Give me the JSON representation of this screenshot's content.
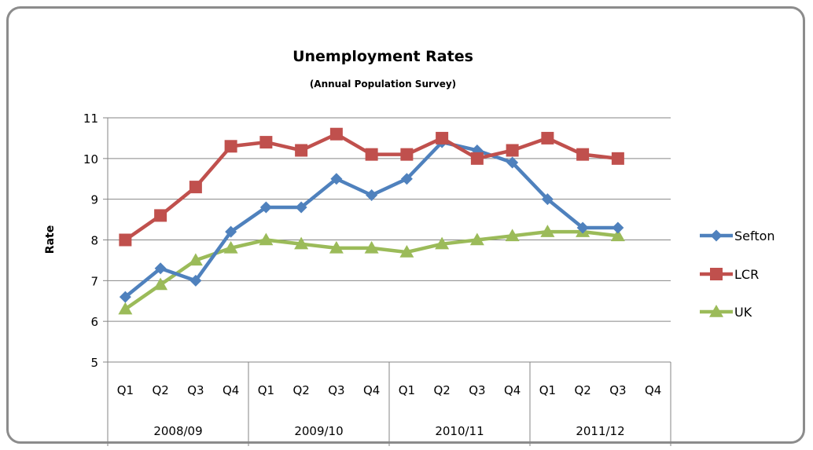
{
  "chart_data": {
    "type": "line",
    "title": "Unemployment Rates",
    "subtitle": "(Annual Population Survey)",
    "ylabel": "Rate",
    "xlabel": "",
    "ylim": [
      5,
      11
    ],
    "yticks": [
      5,
      6,
      7,
      8,
      9,
      10,
      11
    ],
    "grid": "horizontal",
    "legend_position": "right",
    "categories": [
      "Q1",
      "Q2",
      "Q3",
      "Q4",
      "Q1",
      "Q2",
      "Q3",
      "Q4",
      "Q1",
      "Q2",
      "Q3",
      "Q4",
      "Q1",
      "Q2",
      "Q3",
      "Q4"
    ],
    "groups": [
      {
        "label": "2008/09",
        "count": 4
      },
      {
        "label": "2009/10",
        "count": 4
      },
      {
        "label": "2010/11",
        "count": 4
      },
      {
        "label": "2011/12",
        "count": 4
      }
    ],
    "series": [
      {
        "name": "Sefton",
        "color": "#4f81bd",
        "marker": "diamond",
        "values": [
          6.6,
          7.3,
          7.0,
          8.2,
          8.8,
          8.8,
          9.5,
          9.1,
          9.5,
          10.4,
          10.2,
          9.9,
          9.0,
          8.3,
          8.3,
          null
        ]
      },
      {
        "name": "LCR",
        "color": "#c0504d",
        "marker": "square",
        "values": [
          8.0,
          8.6,
          9.3,
          10.3,
          10.4,
          10.2,
          10.6,
          10.1,
          10.1,
          10.5,
          10.0,
          10.2,
          10.5,
          10.1,
          10.0,
          null
        ]
      },
      {
        "name": "UK",
        "color": "#9bbb59",
        "marker": "triangle",
        "values": [
          6.3,
          6.9,
          7.5,
          7.8,
          8.0,
          7.9,
          7.8,
          7.8,
          7.7,
          7.9,
          8.0,
          8.1,
          8.2,
          8.2,
          8.1,
          null
        ]
      }
    ]
  }
}
